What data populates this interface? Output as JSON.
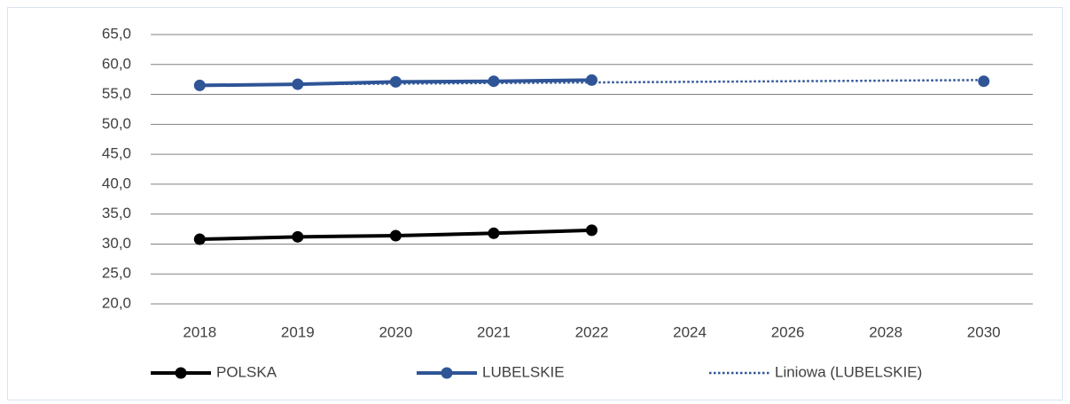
{
  "chart_data": {
    "type": "line",
    "categories": [
      "2018",
      "2019",
      "2020",
      "2021",
      "2022",
      "2024",
      "2026",
      "2028",
      "2030"
    ],
    "series": [
      {
        "name": "POLSKA",
        "color": "#000000",
        "style": "solid",
        "markers": true,
        "values": [
          30.8,
          31.2,
          31.4,
          31.8,
          32.3,
          null,
          null,
          null,
          null
        ]
      },
      {
        "name": "LUBELSKIE",
        "color": "#2f5597",
        "style": "solid",
        "markers": true,
        "values": [
          56.5,
          56.7,
          57.1,
          57.2,
          57.4,
          null,
          null,
          null,
          57.2
        ]
      },
      {
        "name": "Liniowa (LUBELSKIE)",
        "color": "#2f5597",
        "style": "dotted",
        "markers": false,
        "values": [
          56.6,
          56.7,
          56.8,
          56.9,
          57.0,
          57.1,
          57.2,
          57.3,
          57.4
        ]
      }
    ],
    "ylim": [
      20,
      65
    ],
    "yticks": [
      {
        "value": 20,
        "label": "20,0"
      },
      {
        "value": 25,
        "label": "25,0"
      },
      {
        "value": 30,
        "label": "30,0"
      },
      {
        "value": 35,
        "label": "35,0"
      },
      {
        "value": 40,
        "label": "40,0"
      },
      {
        "value": 45,
        "label": "45,0"
      },
      {
        "value": 50,
        "label": "50,0"
      },
      {
        "value": 55,
        "label": "55,0"
      },
      {
        "value": 60,
        "label": "60,0"
      },
      {
        "value": 65,
        "label": "65,0"
      }
    ],
    "grid": true,
    "legend": "bottom"
  }
}
